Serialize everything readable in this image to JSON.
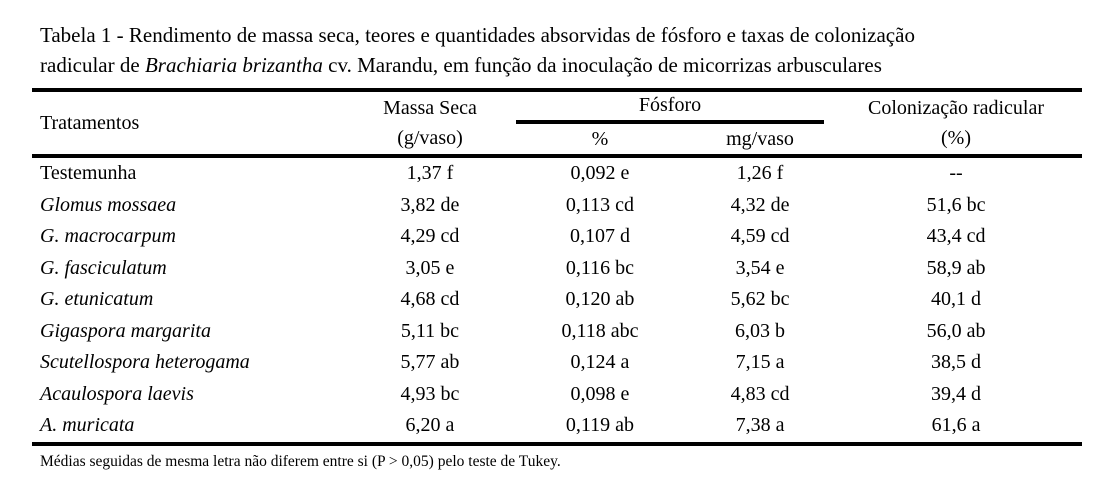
{
  "page": {
    "background": "#ffffff",
    "text_color": "#000000",
    "rule_color": "#000000"
  },
  "title": {
    "line1": "Tabela 1 - Rendimento de massa seca, teores e quantidades absorvidas de fósforo e taxas de colonização",
    "line2_prefix": "radicular de ",
    "line2_italic": "Brachiaria brizantha",
    "line2_suffix": " cv. Marandu, em função da inoculação de micorrizas arbusculares"
  },
  "table": {
    "headers": {
      "tratamentos": "Tratamentos",
      "massa_seca_line1": "Massa Seca",
      "massa_seca_line2": "(g/vaso)",
      "fosforo_group": "Fósforo",
      "fosforo_pct": "%",
      "fosforo_mg": "mg/vaso",
      "colonizacao_line1": "Colonização radicular",
      "colonizacao_line2": "(%)"
    },
    "rows": [
      {
        "treatment": "Testemunha",
        "italic": false,
        "massa_seca": "1,37 f",
        "p_pct": "0,092 e",
        "p_mg": "1,26 f",
        "colonizacao": "--"
      },
      {
        "treatment": "Glomus mossaea",
        "italic": true,
        "massa_seca": "3,82 de",
        "p_pct": "0,113 cd",
        "p_mg": "4,32 de",
        "colonizacao": "51,6 bc"
      },
      {
        "treatment": "G. macrocarpum",
        "italic": true,
        "massa_seca": "4,29 cd",
        "p_pct": "0,107 d",
        "p_mg": "4,59 cd",
        "colonizacao": "43,4 cd"
      },
      {
        "treatment": "G. fasciculatum",
        "italic": true,
        "massa_seca": "3,05 e",
        "p_pct": "0,116 bc",
        "p_mg": "3,54 e",
        "colonizacao": "58,9 ab"
      },
      {
        "treatment": "G. etunicatum",
        "italic": true,
        "massa_seca": "4,68 cd",
        "p_pct": "0,120 ab",
        "p_mg": "5,62 bc",
        "colonizacao": "40,1 d"
      },
      {
        "treatment": "Gigaspora margarita",
        "italic": true,
        "massa_seca": "5,11 bc",
        "p_pct": "0,118 abc",
        "p_mg": "6,03 b",
        "colonizacao": "56,0 ab"
      },
      {
        "treatment": "Scutellospora heterogama",
        "italic": true,
        "massa_seca": "5,77 ab",
        "p_pct": "0,124 a",
        "p_mg": "7,15 a",
        "colonizacao": "38,5 d"
      },
      {
        "treatment": "Acaulospora laevis",
        "italic": true,
        "massa_seca": "4,93 bc",
        "p_pct": "0,098 e",
        "p_mg": "4,83 cd",
        "colonizacao": "39,4 d"
      },
      {
        "treatment": "A. muricata",
        "italic": true,
        "massa_seca": "6,20 a",
        "p_pct": "0,119 ab",
        "p_mg": "7,38 a",
        "colonizacao": "61,6 a"
      }
    ]
  },
  "footnote": "Médias seguidas de mesma letra não diferem entre si (P > 0,05) pelo teste de Tukey."
}
